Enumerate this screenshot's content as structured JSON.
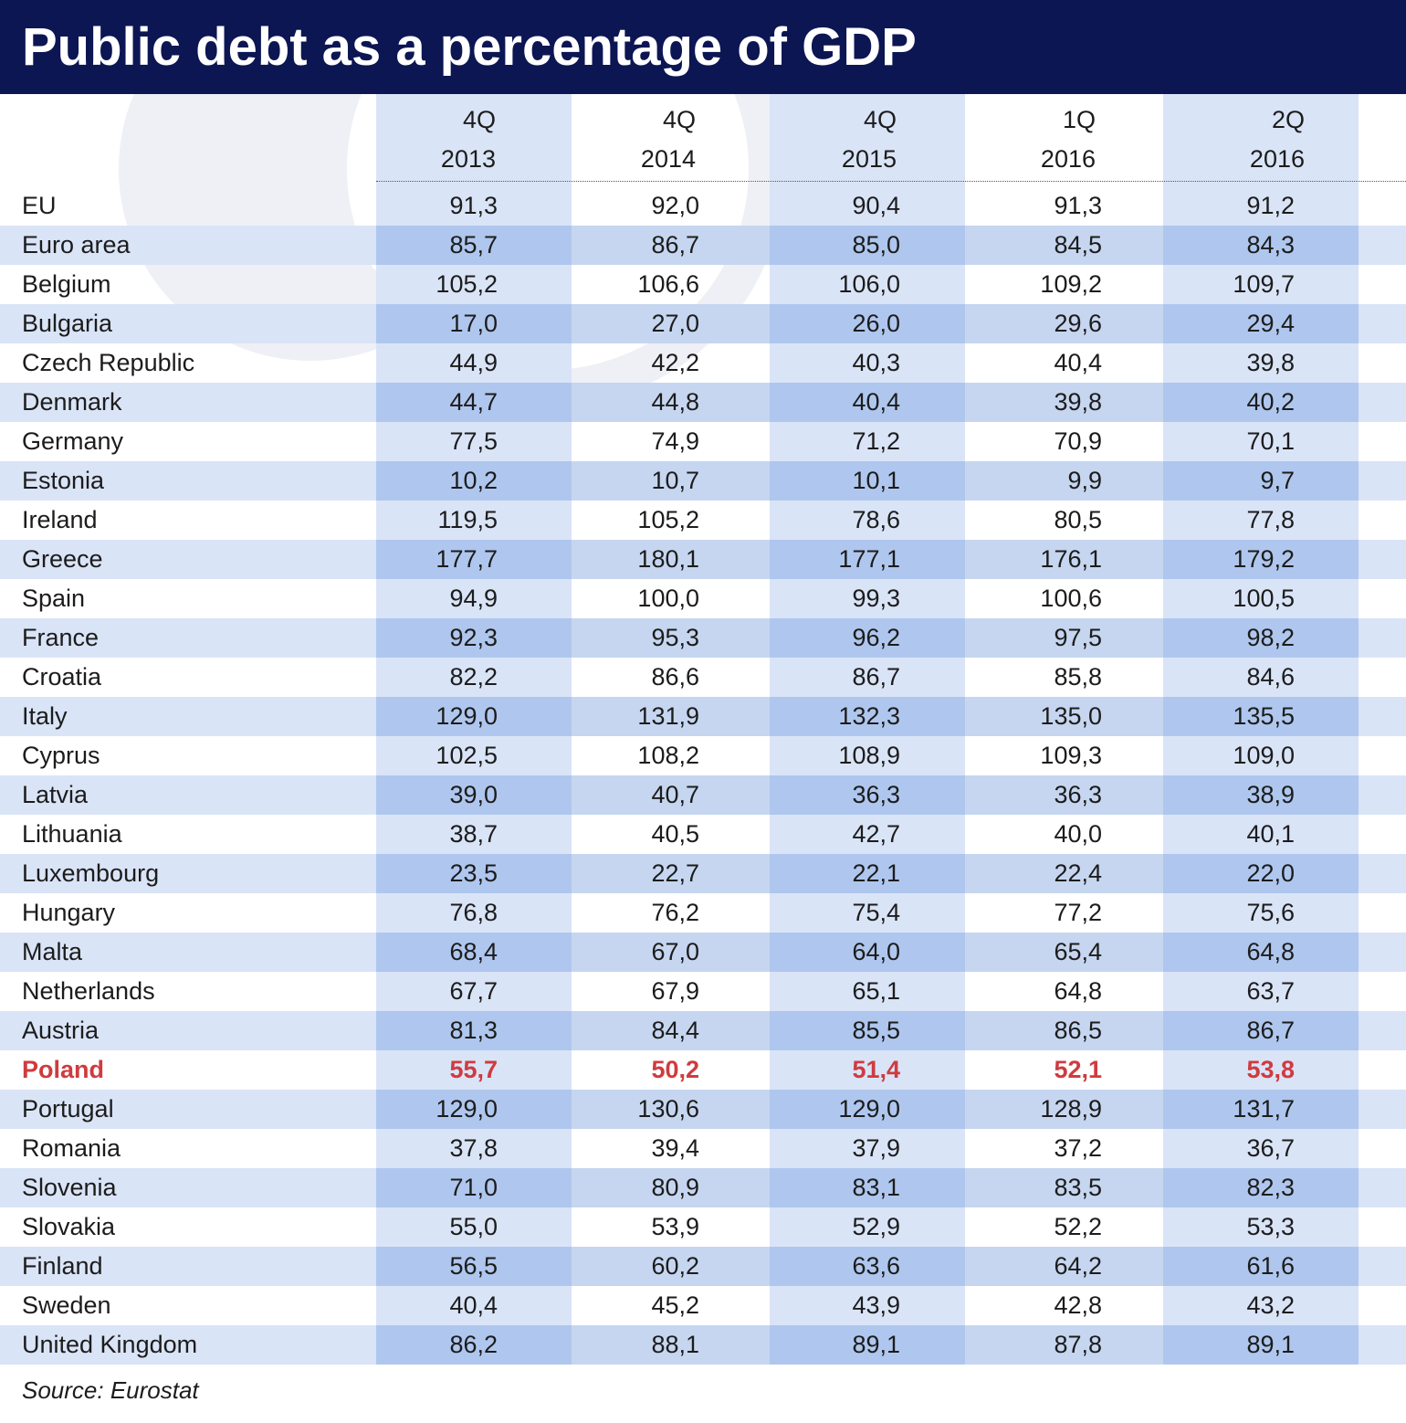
{
  "colors": {
    "title_background": "#0c1653",
    "title_text": "#ffffff",
    "highlight_row": "#cf3b3f",
    "band_light": "#dae4f7",
    "band_mid": "#c6d6f0",
    "band_dark": "#afc7ee"
  },
  "chart_data": {
    "type": "table",
    "title": "Public debt as a percentage of GDP",
    "columns": [
      {
        "label_top": "4Q",
        "label_bottom": "2013"
      },
      {
        "label_top": "4Q",
        "label_bottom": "2014"
      },
      {
        "label_top": "4Q",
        "label_bottom": "2015"
      },
      {
        "label_top": "1Q",
        "label_bottom": "2016"
      },
      {
        "label_top": "2Q",
        "label_bottom": "2016"
      }
    ],
    "rows": [
      {
        "name": "EU",
        "values": [
          "91,3",
          "92,0",
          "90,4",
          "91,3",
          "91,2"
        ]
      },
      {
        "name": "Euro area",
        "values": [
          "85,7",
          "86,7",
          "85,0",
          "84,5",
          "84,3"
        ]
      },
      {
        "name": "Belgium",
        "values": [
          "105,2",
          "106,6",
          "106,0",
          "109,2",
          "109,7"
        ]
      },
      {
        "name": "Bulgaria",
        "values": [
          "17,0",
          "27,0",
          "26,0",
          "29,6",
          "29,4"
        ]
      },
      {
        "name": "Czech Republic",
        "values": [
          "44,9",
          "42,2",
          "40,3",
          "40,4",
          "39,8"
        ]
      },
      {
        "name": "Denmark",
        "values": [
          "44,7",
          "44,8",
          "40,4",
          "39,8",
          "40,2"
        ]
      },
      {
        "name": "Germany",
        "values": [
          "77,5",
          "74,9",
          "71,2",
          "70,9",
          "70,1"
        ]
      },
      {
        "name": "Estonia",
        "values": [
          "10,2",
          "10,7",
          "10,1",
          "9,9",
          "9,7"
        ]
      },
      {
        "name": "Ireland",
        "values": [
          "119,5",
          "105,2",
          "78,6",
          "80,5",
          "77,8"
        ]
      },
      {
        "name": "Greece",
        "values": [
          "177,7",
          "180,1",
          "177,1",
          "176,1",
          "179,2"
        ]
      },
      {
        "name": "Spain",
        "values": [
          "94,9",
          "100,0",
          "99,3",
          "100,6",
          "100,5"
        ]
      },
      {
        "name": "France",
        "values": [
          "92,3",
          "95,3",
          "96,2",
          "97,5",
          "98,2"
        ]
      },
      {
        "name": "Croatia",
        "values": [
          "82,2",
          "86,6",
          "86,7",
          "85,8",
          "84,6"
        ]
      },
      {
        "name": "Italy",
        "values": [
          "129,0",
          "131,9",
          "132,3",
          "135,0",
          "135,5"
        ]
      },
      {
        "name": "Cyprus",
        "values": [
          "102,5",
          "108,2",
          "108,9",
          "109,3",
          "109,0"
        ]
      },
      {
        "name": "Latvia",
        "values": [
          "39,0",
          "40,7",
          "36,3",
          "36,3",
          "38,9"
        ]
      },
      {
        "name": "Lithuania",
        "values": [
          "38,7",
          "40,5",
          "42,7",
          "40,0",
          "40,1"
        ]
      },
      {
        "name": "Luxembourg",
        "values": [
          "23,5",
          "22,7",
          "22,1",
          "22,4",
          "22,0"
        ]
      },
      {
        "name": "Hungary",
        "values": [
          "76,8",
          "76,2",
          "75,4",
          "77,2",
          "75,6"
        ]
      },
      {
        "name": "Malta",
        "values": [
          "68,4",
          "67,0",
          "64,0",
          "65,4",
          "64,8"
        ]
      },
      {
        "name": "Netherlands",
        "values": [
          "67,7",
          "67,9",
          "65,1",
          "64,8",
          "63,7"
        ]
      },
      {
        "name": "Austria",
        "values": [
          "81,3",
          "84,4",
          "85,5",
          "86,5",
          "86,7"
        ]
      },
      {
        "name": "Poland",
        "values": [
          "55,7",
          "50,2",
          "51,4",
          "52,1",
          "53,8"
        ],
        "highlight": true
      },
      {
        "name": "Portugal",
        "values": [
          "129,0",
          "130,6",
          "129,0",
          "128,9",
          "131,7"
        ]
      },
      {
        "name": "Romania",
        "values": [
          "37,8",
          "39,4",
          "37,9",
          "37,2",
          "36,7"
        ]
      },
      {
        "name": "Slovenia",
        "values": [
          "71,0",
          "80,9",
          "83,1",
          "83,5",
          "82,3"
        ]
      },
      {
        "name": "Slovakia",
        "values": [
          "55,0",
          "53,9",
          "52,9",
          "52,2",
          "53,3"
        ]
      },
      {
        "name": "Finland",
        "values": [
          "56,5",
          "60,2",
          "63,6",
          "64,2",
          "61,6"
        ]
      },
      {
        "name": "Sweden",
        "values": [
          "40,4",
          "45,2",
          "43,9",
          "42,8",
          "43,2"
        ]
      },
      {
        "name": "United Kingdom",
        "values": [
          "86,2",
          "88,1",
          "89,1",
          "87,8",
          "89,1"
        ]
      }
    ],
    "source": "Source: Eurostat"
  }
}
